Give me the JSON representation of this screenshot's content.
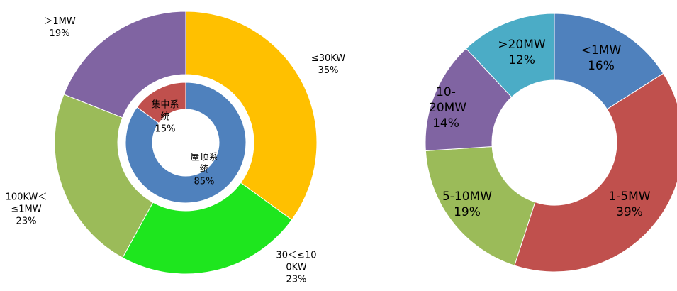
{
  "chart_data": [
    {
      "type": "donut",
      "rings": [
        {
          "categories": [
            "≤30KW",
            "30＜≤100KW",
            "100KW＜≤1MW",
            "＞1MW"
          ],
          "values": [
            35,
            23,
            23,
            19
          ],
          "value_labels": [
            "35%",
            "23%",
            "23%",
            "19%"
          ],
          "colors": [
            "#ffc000",
            "#1ee61e",
            "#9bbb59",
            "#8064a2"
          ]
        },
        {
          "categories": [
            "屋顶系统",
            "集中系统"
          ],
          "values": [
            85,
            15
          ],
          "value_labels": [
            "85%",
            "15%"
          ],
          "colors": [
            "#4f81bd",
            "#c0504d"
          ]
        }
      ]
    },
    {
      "type": "donut",
      "rings": [
        {
          "categories": [
            "<1MW",
            "1-5MW",
            "5-10MW",
            "10-20MW",
            ">20MW"
          ],
          "values": [
            16,
            39,
            19,
            14,
            12
          ],
          "value_labels": [
            "16%",
            "39%",
            "19%",
            "14%",
            "12%"
          ],
          "colors": [
            "#4f81bd",
            "#c0504d",
            "#9bbb59",
            "#8064a2",
            "#4bacc6"
          ]
        }
      ]
    }
  ]
}
